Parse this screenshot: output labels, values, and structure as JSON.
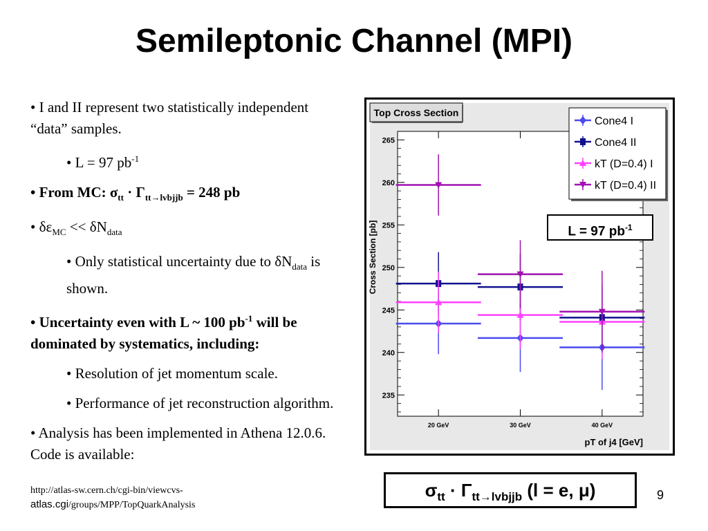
{
  "slide": {
    "title": "Semileptonic Channel (MPI)",
    "page_number": "9",
    "url_line1": "http://atlas-sw.cern.ch/cgi-bin/viewcvs-",
    "url_line2a": "atlas.cgi",
    "url_line2b": "/groups/MPP/TopQuarkAnalysis"
  },
  "bullets": {
    "b1": "I and II represent two statistically independent “data” samples.",
    "b2_pre": "L = 97 pb",
    "b2_sup": "-1",
    "b3_pre": "From MC: σ",
    "b3_sub1": "tt",
    "b3_mid": " · Γ",
    "b3_sub2": "tt→lvbjjb",
    "b3_post": " = 248 pb",
    "b4_a": "δε",
    "b4_sub1": "MC",
    "b4_b": " << δN",
    "b4_sub2": "data",
    "b5_a": "Only statistical uncertainty due to δN",
    "b5_sub": "data",
    "b5_b": " is shown.",
    "b6_a": "Uncertainty even with L ~ 100 pb",
    "b6_sup": "-1",
    "b6_b": " will be dominated by systematics, including:",
    "b7": "Resolution of jet momentum scale.",
    "b8": "Performance of jet reconstruction algorithm.",
    "b9": "Analysis has been implemented in Athena 12.0.6.  Code is available:"
  },
  "formula": {
    "sigma": "σ",
    "sub1": "tt",
    "dot": " · Γ",
    "sub2": "tt→lvbjjb",
    "post": " (l = e, μ)"
  },
  "lumi_box": {
    "text": "L = 97 pb",
    "sup": "-1"
  },
  "chart_data": {
    "type": "scatter",
    "title": "Top Cross Section",
    "xlabel": "pT of j4 [GeV]",
    "ylabel": "Cross Section [pb]",
    "categories": [
      "20 GeV",
      "30 GeV",
      "40 GeV"
    ],
    "ylim": [
      232.5,
      266
    ],
    "yticks": [
      235,
      240,
      245,
      250,
      255,
      260,
      265
    ],
    "legend_position": "top-right",
    "series": [
      {
        "name": "Cone4 I",
        "color": "#4a4aee",
        "marker": "diamond",
        "values": [
          243.4,
          241.7,
          240.6
        ],
        "errors": [
          3.6,
          4.0,
          5.0
        ]
      },
      {
        "name": "Cone4 II",
        "color": "#10108e",
        "marker": "square",
        "values": [
          248.1,
          247.7,
          244.1
        ],
        "errors": [
          3.7,
          3.9,
          3.6
        ]
      },
      {
        "name": "kT (D=0.4) I",
        "color": "#ff40ff",
        "marker": "triangle-up",
        "values": [
          245.9,
          244.4,
          243.6
        ],
        "errors": [
          3.6,
          4.0,
          4.4
        ]
      },
      {
        "name": "kT (D=0.4) II",
        "color": "#a010b0",
        "marker": "triangle-down",
        "values": [
          259.7,
          249.2,
          244.8
        ],
        "errors": [
          3.6,
          4.0,
          4.8
        ]
      }
    ]
  }
}
